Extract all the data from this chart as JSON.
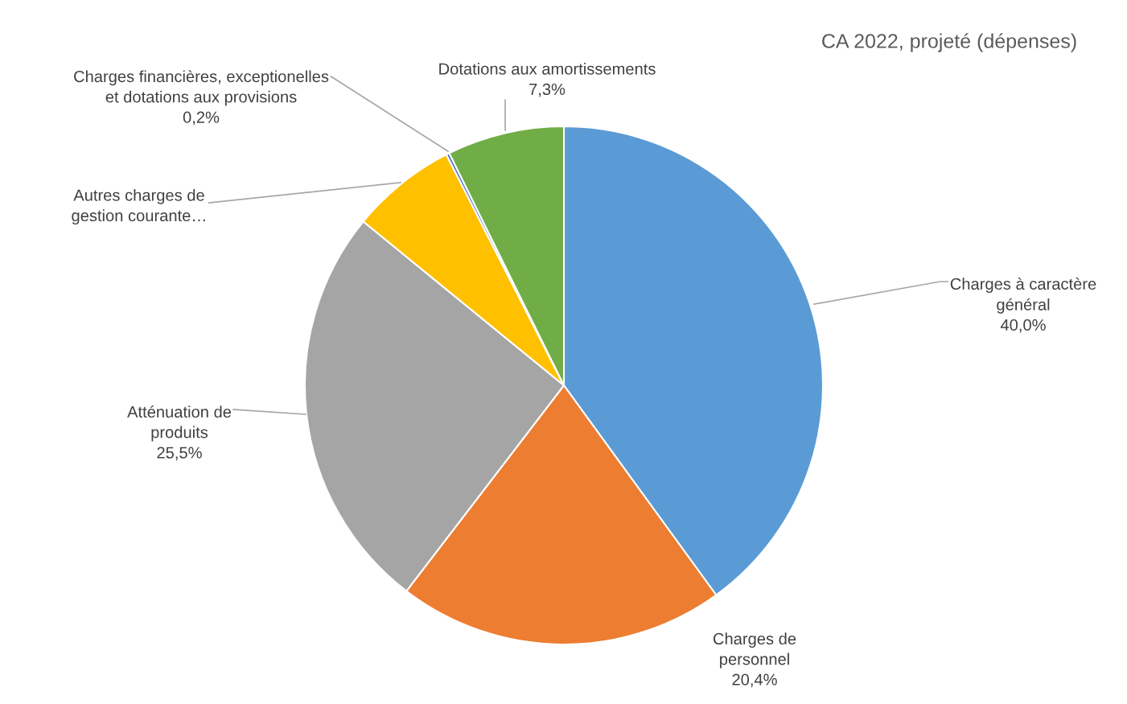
{
  "chart_data": {
    "type": "pie",
    "title": "CA 2022, projeté (dépenses)",
    "categories": [
      "Charges à caractère\ngénéral",
      "Charges de\npersonnel",
      "Atténuation de\nproduits",
      "Autres charges de\ngestion courante…",
      "Charges financières, exceptionelles\net dotations aux provisions",
      "Dotations aux amortissements"
    ],
    "values": [
      40.0,
      20.4,
      25.5,
      6.6,
      0.2,
      7.3
    ],
    "value_labels": [
      "40,0%",
      "20,4%",
      "25,5%",
      null,
      "0,2%",
      "7,3%"
    ],
    "colors": [
      "#5b9bd5",
      "#ed7d31",
      "#a5a5a5",
      "#ffc000",
      "#4472c4",
      "#70ad47"
    ]
  }
}
